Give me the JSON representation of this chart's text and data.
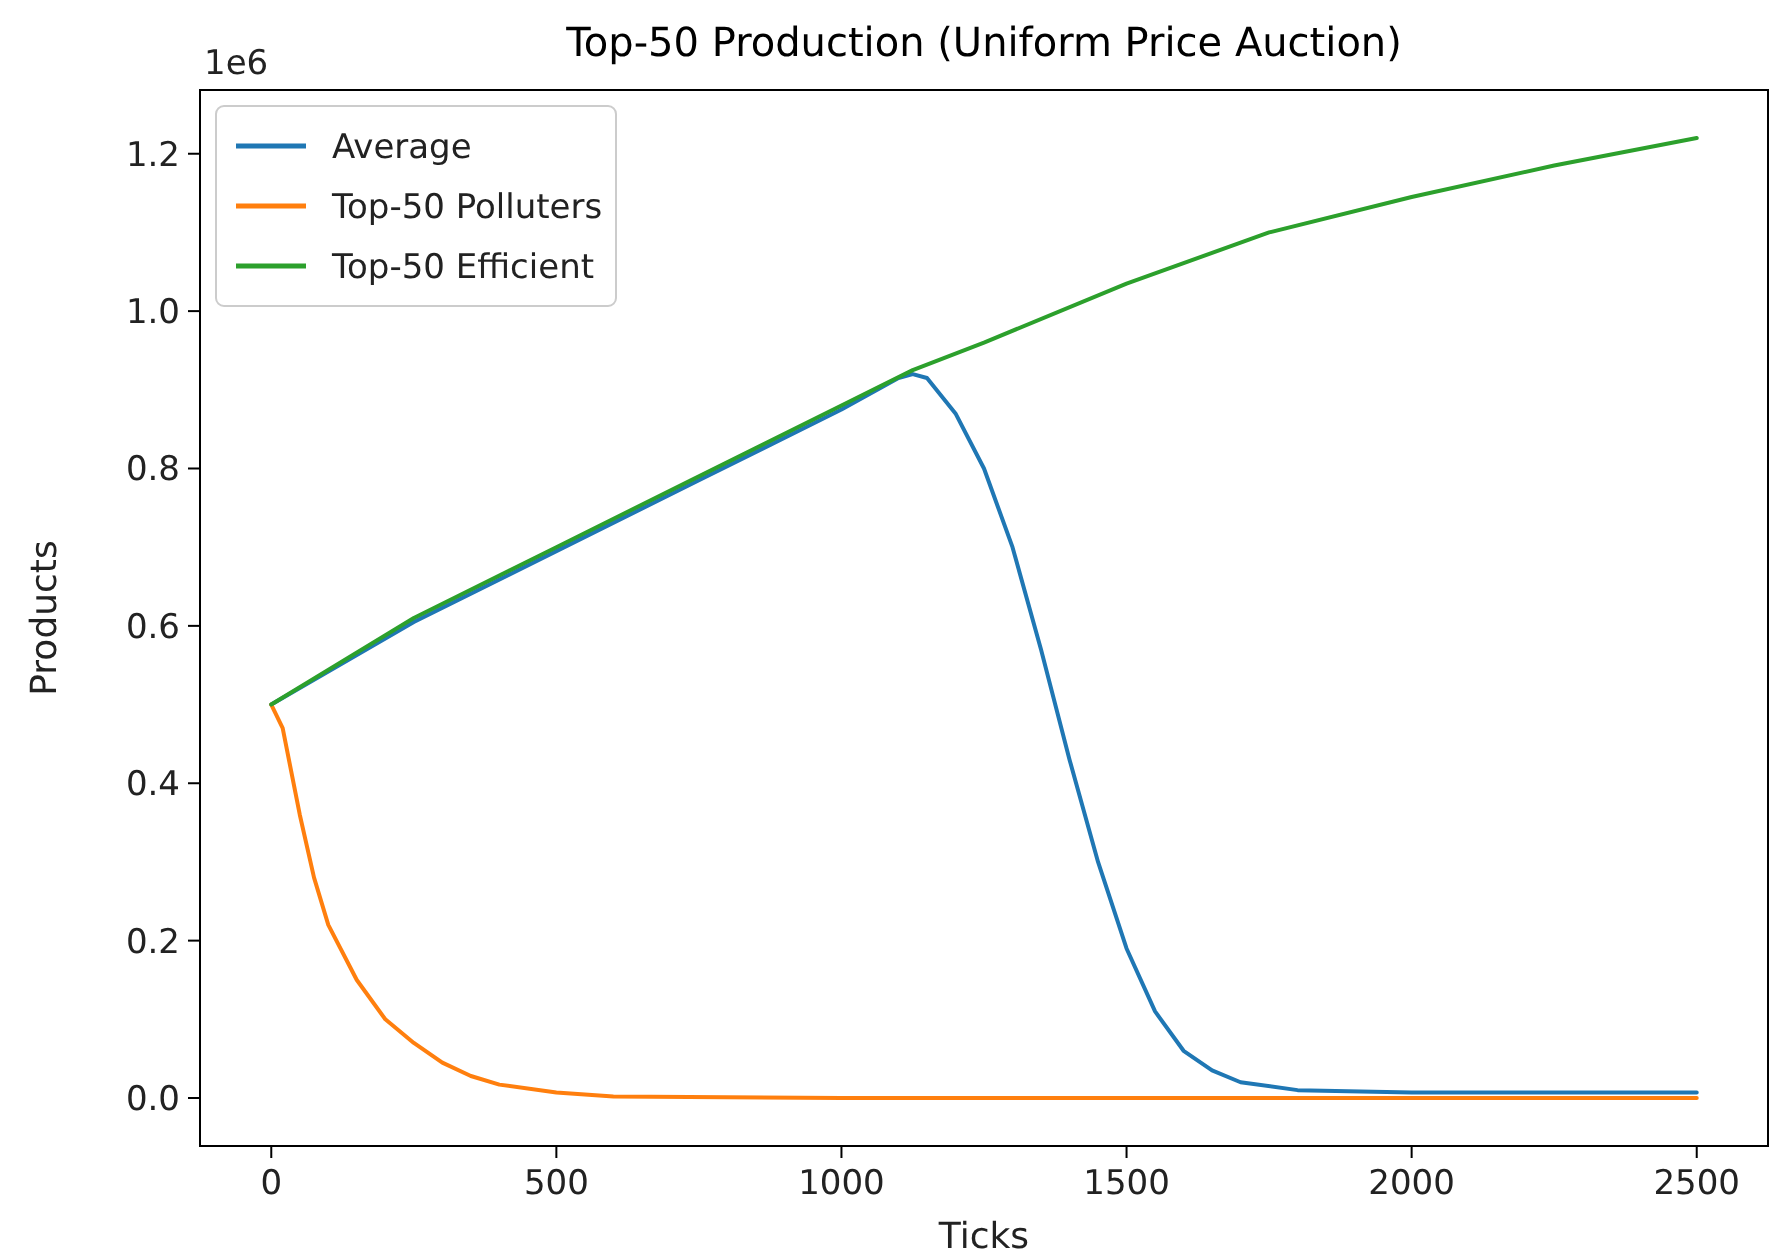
{
  "chart_data": {
    "type": "line",
    "title": "Top-50 Production (Uniform Price Auction)",
    "xlabel": "Ticks",
    "ylabel": "Products",
    "annotations": [
      "1e6"
    ],
    "xlim": [
      -125,
      2625
    ],
    "xticks": [
      0,
      500,
      1000,
      1500,
      2000,
      2500
    ],
    "ylim": [
      -0.061,
      1.281
    ],
    "yticks": [
      {
        "value": 0,
        "label": "0.0"
      },
      0.2,
      0.4,
      0.6,
      0.8,
      {
        "value": 1,
        "label": "1.0"
      },
      1.2
    ],
    "legend": "top left",
    "grid": false,
    "line_style": "solid",
    "marker": "none",
    "series": [
      {
        "name": "Average",
        "color": "#1f77b4",
        "x": [
          0,
          250,
          500,
          750,
          1000,
          1100,
          1125,
          1150,
          1200,
          1250,
          1300,
          1350,
          1400,
          1450,
          1500,
          1550,
          1600,
          1650,
          1700,
          1800,
          2000,
          2500
        ],
        "values": [
          0.5,
          0.605,
          0.695,
          0.785,
          0.875,
          0.915,
          0.92,
          0.915,
          0.87,
          0.8,
          0.7,
          0.57,
          0.43,
          0.3,
          0.19,
          0.11,
          0.06,
          0.035,
          0.02,
          0.01,
          0.007,
          0.007
        ]
      },
      {
        "name": "Top-50 Polluters",
        "color": "#ff7f0e",
        "x": [
          0,
          20,
          50,
          75,
          100,
          150,
          200,
          250,
          300,
          350,
          400,
          500,
          600,
          1000,
          2500
        ],
        "values": [
          0.5,
          0.47,
          0.36,
          0.28,
          0.22,
          0.15,
          0.1,
          0.07,
          0.045,
          0.028,
          0.017,
          0.007,
          0.002,
          0,
          0
        ]
      },
      {
        "name": "Top-50 Efficient",
        "color": "#2ca02c",
        "x": [
          0,
          250,
          500,
          750,
          1000,
          1125,
          1250,
          1500,
          1750,
          2000,
          2250,
          2500
        ],
        "values": [
          0.5,
          0.61,
          0.7,
          0.79,
          0.88,
          0.925,
          0.96,
          1.035,
          1.1,
          1.145,
          1.185,
          1.22
        ]
      }
    ]
  }
}
